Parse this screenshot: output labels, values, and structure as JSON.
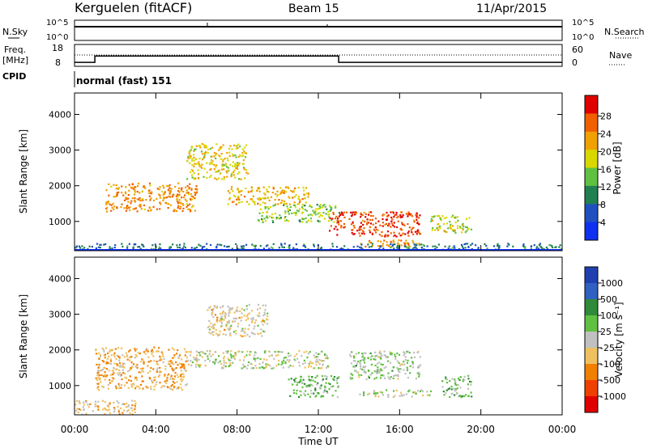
{
  "header": {
    "station": "Kerguelen (fitACF)",
    "beam": "Beam 15",
    "date": "11/Apr/2015"
  },
  "strip_labels": {
    "nsky": "N.Sky",
    "nsearch": "N.Search",
    "freq_line1": "Freq.",
    "freq_line2": "[MHz]",
    "nave": "Nave",
    "cpid": "CPID",
    "cpid_value": "normal (fast) 151",
    "exp_top": "10^5",
    "exp_bottom": "10^0",
    "freq_top": "18",
    "freq_bottom": "8",
    "nave_top": "60",
    "nave_bottom": "0"
  },
  "panels": {
    "power": {
      "ylabel": "Slant Range [km]",
      "cbar_label": "Power [dB]",
      "cbar_ticks": [
        "28",
        "24",
        "20",
        "16",
        "12",
        "8",
        "4"
      ],
      "cbar_colors": [
        "#e00000",
        "#f06000",
        "#f0a000",
        "#d8d800",
        "#60c040",
        "#208050",
        "#2050c0",
        "#1030f0"
      ]
    },
    "velocity": {
      "ylabel": "Slant Range [km]",
      "cbar_label": "Velocity [m s⁻¹]",
      "cbar_ticks": [
        "1000",
        "500",
        "100",
        "25",
        "-25",
        "-100",
        "-500",
        "-1000"
      ],
      "cbar_colors": [
        "#2040b0",
        "#3060c0",
        "#2f8a3a",
        "#60c040",
        "#c0c0c0",
        "#f0c060",
        "#f08000",
        "#f04000",
        "#e00000"
      ]
    }
  },
  "x_axis": {
    "label": "Time UT",
    "ticks": [
      "00:00",
      "04:00",
      "08:00",
      "12:00",
      "16:00",
      "20:00",
      "00:00"
    ]
  },
  "chart_data": [
    {
      "type": "line",
      "name": "frequency-strip",
      "x_unit": "hours UT",
      "y_unit": "MHz",
      "ylim": [
        8,
        18
      ],
      "x": [
        0,
        1.0,
        1.0,
        13.0,
        13.0,
        24
      ],
      "values": [
        9.5,
        9.5,
        12.5,
        12.5,
        9.5,
        9.5
      ]
    },
    {
      "type": "heatmap",
      "name": "power",
      "x_unit": "hours UT",
      "xlim": [
        0,
        24
      ],
      "y_label": "Slant Range [km]",
      "ylim": [
        180,
        4600
      ],
      "yticks": [
        1000,
        2000,
        3000,
        4000
      ],
      "value_label": "Power [dB]",
      "value_range": [
        0,
        30
      ],
      "regions": [
        {
          "x0": 1.5,
          "x1": 6.0,
          "y0": 1300,
          "y1": 2100,
          "value": 22
        },
        {
          "x0": 5.5,
          "x1": 8.5,
          "y0": 2200,
          "y1": 3200,
          "value": 18
        },
        {
          "x0": 7.5,
          "x1": 11.5,
          "y0": 1500,
          "y1": 2000,
          "value": 20
        },
        {
          "x0": 9.0,
          "x1": 13.0,
          "y0": 1000,
          "y1": 1500,
          "value": 14
        },
        {
          "x0": 12.5,
          "x1": 17.0,
          "y0": 600,
          "y1": 1300,
          "value": 26
        },
        {
          "x0": 14.0,
          "x1": 17.0,
          "y0": 300,
          "y1": 500,
          "value": 22
        },
        {
          "x0": 17.5,
          "x1": 19.5,
          "y0": 700,
          "y1": 1200,
          "value": 16
        },
        {
          "x0": 0.0,
          "x1": 24.0,
          "y0": 180,
          "y1": 400,
          "value": 8
        }
      ]
    },
    {
      "type": "heatmap",
      "name": "velocity",
      "x_unit": "hours UT",
      "xlim": [
        0,
        24
      ],
      "y_label": "Slant Range [km]",
      "ylim": [
        180,
        4600
      ],
      "yticks": [
        1000,
        2000,
        3000,
        4000
      ],
      "value_label": "Velocity [m s⁻¹]",
      "value_range": [
        -1000,
        1000
      ],
      "regions": [
        {
          "x0": 1.0,
          "x1": 5.5,
          "y0": 900,
          "y1": 2100,
          "value": -300
        },
        {
          "x0": 5.5,
          "x1": 12.5,
          "y0": 1500,
          "y1": 2000,
          "value": 0
        },
        {
          "x0": 6.5,
          "x1": 9.5,
          "y0": 2400,
          "y1": 3300,
          "value": -100
        },
        {
          "x0": 13.5,
          "x1": 17.0,
          "y0": 1200,
          "y1": 2000,
          "value": 100
        },
        {
          "x0": 10.5,
          "x1": 13.0,
          "y0": 700,
          "y1": 1300,
          "value": 200
        },
        {
          "x0": 14.0,
          "x1": 17.5,
          "y0": 700,
          "y1": 900,
          "value": 0
        },
        {
          "x0": 18.0,
          "x1": 19.5,
          "y0": 700,
          "y1": 1300,
          "value": 200
        },
        {
          "x0": 0.0,
          "x1": 3.0,
          "y0": 200,
          "y1": 600,
          "value": -200
        }
      ]
    }
  ]
}
